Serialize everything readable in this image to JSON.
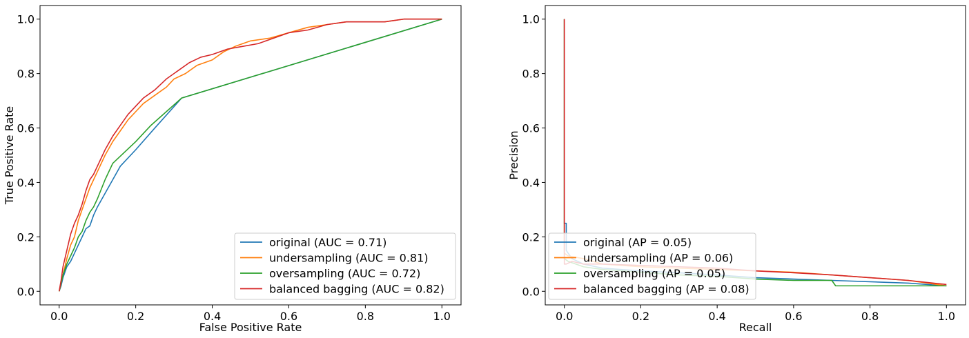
{
  "chart_data": [
    {
      "type": "line",
      "title": "",
      "xlabel": "False Positive Rate",
      "ylabel": "True Positive Rate",
      "xlim": [
        -0.05,
        1.05
      ],
      "ylim": [
        -0.05,
        1.05
      ],
      "xticks": [
        "0.0",
        "0.2",
        "0.4",
        "0.6",
        "0.8",
        "1.0"
      ],
      "yticks": [
        "0.0",
        "0.2",
        "0.4",
        "0.6",
        "0.8",
        "1.0"
      ],
      "grid": false,
      "legend_position": "lower-right",
      "series": [
        {
          "name": "original (AUC = 0.71)",
          "color": "#1f77b4",
          "x": [
            0.0,
            0.005,
            0.01,
            0.02,
            0.03,
            0.04,
            0.05,
            0.06,
            0.07,
            0.08,
            0.09,
            0.1,
            0.12,
            0.14,
            0.16,
            0.2,
            0.25,
            0.32,
            1.0
          ],
          "y": [
            0.0,
            0.02,
            0.05,
            0.09,
            0.11,
            0.14,
            0.17,
            0.2,
            0.23,
            0.24,
            0.28,
            0.31,
            0.36,
            0.41,
            0.46,
            0.52,
            0.6,
            0.71,
            1.0
          ]
        },
        {
          "name": "undersampling (AUC = 0.81)",
          "color": "#ff7f0e",
          "x": [
            0.0,
            0.01,
            0.02,
            0.03,
            0.04,
            0.05,
            0.06,
            0.07,
            0.08,
            0.09,
            0.1,
            0.12,
            0.14,
            0.16,
            0.18,
            0.2,
            0.22,
            0.25,
            0.28,
            0.3,
            0.33,
            0.36,
            0.4,
            0.43,
            0.46,
            0.5,
            0.55,
            0.6,
            0.65,
            0.7,
            0.75,
            0.8,
            0.85,
            0.9,
            0.95,
            1.0
          ],
          "y": [
            0.0,
            0.06,
            0.12,
            0.17,
            0.2,
            0.26,
            0.3,
            0.34,
            0.38,
            0.41,
            0.44,
            0.5,
            0.55,
            0.59,
            0.63,
            0.66,
            0.69,
            0.72,
            0.75,
            0.78,
            0.8,
            0.83,
            0.85,
            0.88,
            0.9,
            0.92,
            0.93,
            0.95,
            0.97,
            0.98,
            0.99,
            0.99,
            0.99,
            1.0,
            1.0,
            1.0
          ]
        },
        {
          "name": "oversampling (AUC = 0.72)",
          "color": "#2ca02c",
          "x": [
            0.0,
            0.005,
            0.01,
            0.02,
            0.03,
            0.04,
            0.05,
            0.06,
            0.07,
            0.08,
            0.09,
            0.1,
            0.12,
            0.14,
            0.17,
            0.2,
            0.24,
            0.28,
            0.32,
            1.0
          ],
          "y": [
            0.0,
            0.03,
            0.06,
            0.1,
            0.13,
            0.16,
            0.2,
            0.22,
            0.26,
            0.29,
            0.31,
            0.34,
            0.41,
            0.47,
            0.51,
            0.55,
            0.61,
            0.66,
            0.71,
            1.0
          ]
        },
        {
          "name": "balanced bagging (AUC = 0.82)",
          "color": "#d62728",
          "x": [
            0.0,
            0.005,
            0.01,
            0.02,
            0.03,
            0.04,
            0.05,
            0.06,
            0.07,
            0.08,
            0.09,
            0.1,
            0.12,
            0.14,
            0.16,
            0.18,
            0.2,
            0.22,
            0.25,
            0.28,
            0.31,
            0.34,
            0.37,
            0.4,
            0.44,
            0.48,
            0.52,
            0.56,
            0.6,
            0.65,
            0.7,
            0.75,
            0.8,
            0.85,
            0.9,
            0.95,
            1.0
          ],
          "y": [
            0.0,
            0.04,
            0.09,
            0.15,
            0.21,
            0.25,
            0.28,
            0.32,
            0.37,
            0.41,
            0.43,
            0.46,
            0.52,
            0.57,
            0.61,
            0.65,
            0.68,
            0.71,
            0.74,
            0.78,
            0.81,
            0.84,
            0.86,
            0.87,
            0.89,
            0.9,
            0.91,
            0.93,
            0.95,
            0.96,
            0.98,
            0.99,
            0.99,
            0.99,
            1.0,
            1.0,
            1.0
          ]
        }
      ]
    },
    {
      "type": "line",
      "title": "",
      "xlabel": "Recall",
      "ylabel": "Precision",
      "xlim": [
        -0.05,
        1.05
      ],
      "ylim": [
        -0.05,
        1.05
      ],
      "xticks": [
        "0.0",
        "0.2",
        "0.4",
        "0.6",
        "0.8",
        "1.0"
      ],
      "yticks": [
        "0.0",
        "0.2",
        "0.4",
        "0.6",
        "0.8",
        "1.0"
      ],
      "grid": false,
      "legend_position": "lower-left",
      "series": [
        {
          "name": "original (AP = 0.05)",
          "color": "#1f77b4",
          "x": [
            0.0,
            0.0,
            0.005,
            0.005,
            0.02,
            0.05,
            0.1,
            0.2,
            0.3,
            0.4,
            0.5,
            0.6,
            0.7,
            0.8,
            0.9,
            1.0
          ],
          "y": [
            1.0,
            0.25,
            0.25,
            0.15,
            0.12,
            0.1,
            0.085,
            0.075,
            0.068,
            0.06,
            0.05,
            0.045,
            0.04,
            0.035,
            0.03,
            0.02
          ]
        },
        {
          "name": "undersampling (AP = 0.06)",
          "color": "#ff7f0e",
          "x": [
            0.0,
            0.0,
            0.01,
            0.05,
            0.1,
            0.2,
            0.3,
            0.4,
            0.5,
            0.6,
            0.7,
            0.8,
            0.9,
            1.0
          ],
          "y": [
            1.0,
            0.14,
            0.13,
            0.12,
            0.1,
            0.09,
            0.085,
            0.08,
            0.075,
            0.07,
            0.06,
            0.05,
            0.04,
            0.02
          ]
        },
        {
          "name": "oversampling (AP = 0.05)",
          "color": "#2ca02c",
          "x": [
            0.0,
            0.0,
            0.01,
            0.05,
            0.1,
            0.2,
            0.3,
            0.4,
            0.5,
            0.6,
            0.7,
            0.71,
            0.8,
            0.9,
            1.0
          ],
          "y": [
            1.0,
            0.12,
            0.11,
            0.09,
            0.08,
            0.07,
            0.06,
            0.055,
            0.045,
            0.04,
            0.04,
            0.02,
            0.02,
            0.02,
            0.02
          ]
        },
        {
          "name": "balanced bagging (AP = 0.08)",
          "color": "#d62728",
          "x": [
            0.0,
            0.0,
            0.005,
            0.02,
            0.05,
            0.1,
            0.2,
            0.3,
            0.4,
            0.5,
            0.6,
            0.7,
            0.8,
            0.9,
            1.0
          ],
          "y": [
            1.0,
            0.1,
            0.1,
            0.11,
            0.1,
            0.1,
            0.095,
            0.09,
            0.085,
            0.075,
            0.068,
            0.06,
            0.05,
            0.04,
            0.025
          ]
        }
      ]
    }
  ]
}
